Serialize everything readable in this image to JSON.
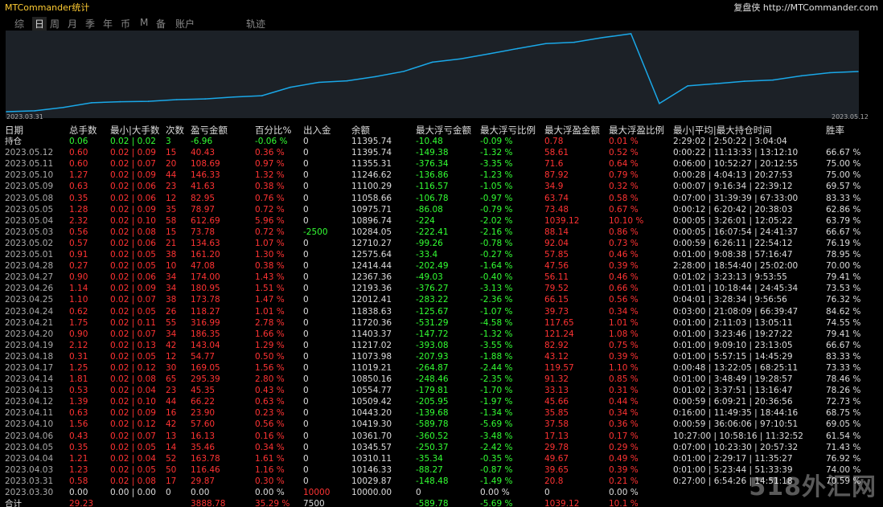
{
  "app": {
    "title": "MTCommander统计",
    "brand": "复盘侠 http://MTCommander.com"
  },
  "tabs": [
    "综",
    "日",
    "周",
    "月",
    "季",
    "年",
    "币",
    "M",
    "备",
    "账户",
    "轨迹"
  ],
  "active_tab": "日",
  "chart": {
    "start_label": "2023.03.31",
    "end_label": "2023.05.12",
    "line_color": "#1aa8e8",
    "balance": [
      10000.0,
      10029.87,
      10146.33,
      10310.11,
      10345.57,
      10361.7,
      10419.3,
      10443.2,
      10509.42,
      10554.77,
      10850.16,
      11019.21,
      11073.98,
      11217.02,
      11403.37,
      11720.36,
      11838.63,
      12012.41,
      12193.36,
      12367.36,
      12414.44,
      12575.64,
      12710.27,
      10284.05,
      10896.74,
      10975.71,
      11058.66,
      11100.29,
      11246.62,
      11355.31,
      11395.74
    ]
  },
  "columns": [
    "日期",
    "总手数",
    "最小|大手数",
    "次数",
    "盈亏金额",
    "百分比%",
    "出入金",
    "余额",
    "最大浮亏金额",
    "最大浮亏比例",
    "最大浮盈金额",
    "最大浮盈比例",
    "最小|平均|最大持仓时间",
    "胜率"
  ],
  "holding": [
    "持仓",
    "0.06",
    "0.02 | 0.02",
    "3",
    "-6.96",
    "-0.06 %",
    "0",
    "11395.74",
    "-10.48",
    "-0.09 %",
    "0.78",
    "0.01 %",
    "2:29:02 | 2:50:22 | 3:04:04",
    ""
  ],
  "rows": [
    [
      "2023.05.12",
      "0.60",
      "0.02 | 0.09",
      "15",
      "40.43",
      "0.36 %",
      "0",
      "11395.74",
      "-149.38",
      "-1.32 %",
      "58.61",
      "0.52 %",
      "0:00:22 | 11:13:33 | 13:12:10",
      "66.67 %"
    ],
    [
      "2023.05.11",
      "0.60",
      "0.02 | 0.07",
      "20",
      "108.69",
      "0.97 %",
      "0",
      "11355.31",
      "-376.34",
      "-3.35 %",
      "71.6",
      "0.64 %",
      "0:06:00 | 10:52:27 | 20:12:55",
      "75.00 %"
    ],
    [
      "2023.05.10",
      "1.27",
      "0.02 | 0.09",
      "44",
      "146.33",
      "1.32 %",
      "0",
      "11246.62",
      "-136.86",
      "-1.23 %",
      "87.92",
      "0.79 %",
      "0:00:28 | 4:04:13 | 20:27:53",
      "75.00 %"
    ],
    [
      "2023.05.09",
      "0.63",
      "0.02 | 0.06",
      "23",
      "41.63",
      "0.38 %",
      "0",
      "11100.29",
      "-116.57",
      "-1.05 %",
      "34.9",
      "0.32 %",
      "0:00:07 | 9:16:34 | 22:39:12",
      "69.57 %"
    ],
    [
      "2023.05.08",
      "0.35",
      "0.02 | 0.06",
      "12",
      "82.95",
      "0.76 %",
      "0",
      "11058.66",
      "-106.78",
      "-0.97 %",
      "63.74",
      "0.58 %",
      "0:07:00 | 31:39:39 | 67:33:00",
      "83.33 %"
    ],
    [
      "2023.05.05",
      "1.28",
      "0.02 | 0.09",
      "35",
      "78.97",
      "0.72 %",
      "0",
      "10975.71",
      "-86.08",
      "-0.79 %",
      "73.48",
      "0.67 %",
      "0:00:12 | 6:20:42 | 20:38:03",
      "62.86 %"
    ],
    [
      "2023.05.04",
      "2.32",
      "0.02 | 0.10",
      "58",
      "612.69",
      "5.96 %",
      "0",
      "10896.74",
      "-224",
      "-2.02 %",
      "1039.12",
      "10.10 %",
      "0:00:05 | 3:26:01 | 12:05:22",
      "63.79 %"
    ],
    [
      "2023.05.03",
      "0.56",
      "0.02 | 0.08",
      "15",
      "73.78",
      "0.72 %",
      "-2500",
      "10284.05",
      "-222.41",
      "-2.16 %",
      "88.14",
      "0.86 %",
      "0:00:05 | 16:07:54 | 24:41:37",
      "66.67 %"
    ],
    [
      "2023.05.02",
      "0.57",
      "0.02 | 0.06",
      "21",
      "134.63",
      "1.07 %",
      "0",
      "12710.27",
      "-99.26",
      "-0.78 %",
      "92.04",
      "0.73 %",
      "0:00:59 | 6:26:11 | 22:54:12",
      "76.19 %"
    ],
    [
      "2023.05.01",
      "0.91",
      "0.02 | 0.05",
      "38",
      "161.20",
      "1.30 %",
      "0",
      "12575.64",
      "-33.4",
      "-0.27 %",
      "57.85",
      "0.46 %",
      "0:01:00 | 9:08:38 | 57:16:47",
      "78.95 %"
    ],
    [
      "2023.04.28",
      "0.27",
      "0.02 | 0.05",
      "10",
      "47.08",
      "0.38 %",
      "0",
      "12414.44",
      "-202.49",
      "-1.64 %",
      "47.56",
      "0.39 %",
      "2:28:00 | 18:54:40 | 25:02:00",
      "70.00 %"
    ],
    [
      "2023.04.27",
      "0.90",
      "0.02 | 0.06",
      "34",
      "174.00",
      "1.43 %",
      "0",
      "12367.36",
      "-49.03",
      "-0.40 %",
      "56.11",
      "0.46 %",
      "0:01:02 | 3:23:13 | 9:53:55",
      "79.41 %"
    ],
    [
      "2023.04.26",
      "1.14",
      "0.02 | 0.09",
      "34",
      "180.95",
      "1.51 %",
      "0",
      "12193.36",
      "-376.27",
      "-3.13 %",
      "79.52",
      "0.66 %",
      "0:01:01 | 10:18:44 | 24:45:34",
      "73.53 %"
    ],
    [
      "2023.04.25",
      "1.10",
      "0.02 | 0.07",
      "38",
      "173.78",
      "1.47 %",
      "0",
      "12012.41",
      "-283.22",
      "-2.36 %",
      "66.15",
      "0.56 %",
      "0:04:01 | 3:28:34 | 9:56:56",
      "76.32 %"
    ],
    [
      "2023.04.24",
      "0.62",
      "0.02 | 0.05",
      "26",
      "118.27",
      "1.01 %",
      "0",
      "11838.63",
      "-125.67",
      "-1.07 %",
      "39.73",
      "0.34 %",
      "0:03:00 | 21:08:09 | 66:39:47",
      "84.62 %"
    ],
    [
      "2023.04.21",
      "1.75",
      "0.02 | 0.11",
      "55",
      "316.99",
      "2.78 %",
      "0",
      "11720.36",
      "-531.29",
      "-4.58 %",
      "117.65",
      "1.01 %",
      "0:01:00 | 2:11:03 | 13:05:11",
      "74.55 %"
    ],
    [
      "2023.04.20",
      "0.90",
      "0.02 | 0.07",
      "34",
      "186.35",
      "1.66 %",
      "0",
      "11403.37",
      "-147.72",
      "-1.32 %",
      "121.24",
      "1.08 %",
      "0:01:00 | 3:23:46 | 19:27:22",
      "79.41 %"
    ],
    [
      "2023.04.19",
      "2.12",
      "0.02 | 0.13",
      "42",
      "143.04",
      "1.29 %",
      "0",
      "11217.02",
      "-393.08",
      "-3.55 %",
      "82.92",
      "0.75 %",
      "0:01:00 | 9:09:10 | 23:13:05",
      "66.67 %"
    ],
    [
      "2023.04.18",
      "0.31",
      "0.02 | 0.05",
      "12",
      "54.77",
      "0.50 %",
      "0",
      "11073.98",
      "-207.93",
      "-1.88 %",
      "43.12",
      "0.39 %",
      "0:01:00 | 5:57:15 | 14:45:29",
      "83.33 %"
    ],
    [
      "2023.04.17",
      "1.25",
      "0.02 | 0.12",
      "30",
      "169.05",
      "1.56 %",
      "0",
      "11019.21",
      "-264.87",
      "-2.44 %",
      "119.57",
      "1.10 %",
      "0:00:48 | 13:22:05 | 68:25:11",
      "73.33 %"
    ],
    [
      "2023.04.14",
      "1.81",
      "0.02 | 0.08",
      "65",
      "295.39",
      "2.80 %",
      "0",
      "10850.16",
      "-248.46",
      "-2.35 %",
      "91.32",
      "0.85 %",
      "0:01:00 | 3:48:49 | 19:28:57",
      "78.46 %"
    ],
    [
      "2023.04.13",
      "0.53",
      "0.02 | 0.04",
      "23",
      "45.35",
      "0.43 %",
      "0",
      "10554.77",
      "-179.81",
      "-1.70 %",
      "33.13",
      "0.31 %",
      "0:01:02 | 3:37:51 | 13:16:47",
      "78.26 %"
    ],
    [
      "2023.04.12",
      "1.39",
      "0.02 | 0.10",
      "44",
      "66.22",
      "0.63 %",
      "0",
      "10509.42",
      "-205.95",
      "-1.97 %",
      "45.66",
      "0.44 %",
      "0:00:59 | 6:09:21 | 20:36:56",
      "72.73 %"
    ],
    [
      "2023.04.11",
      "0.63",
      "0.02 | 0.09",
      "16",
      "23.90",
      "0.23 %",
      "0",
      "10443.20",
      "-139.68",
      "-1.34 %",
      "35.85",
      "0.34 %",
      "0:16:00 | 11:49:35 | 18:44:16",
      "68.75 %"
    ],
    [
      "2023.04.10",
      "1.56",
      "0.02 | 0.12",
      "42",
      "57.60",
      "0.56 %",
      "0",
      "10419.30",
      "-589.78",
      "-5.69 %",
      "37.58",
      "0.36 %",
      "0:00:59 | 36:06:06 | 97:10:51",
      "69.05 %"
    ],
    [
      "2023.04.06",
      "0.43",
      "0.02 | 0.07",
      "13",
      "16.13",
      "0.16 %",
      "0",
      "10361.70",
      "-360.52",
      "-3.48 %",
      "17.13",
      "0.17 %",
      "10:27:00 | 10:58:16 | 11:32:52",
      "61.54 %"
    ],
    [
      "2023.04.05",
      "0.35",
      "0.02 | 0.05",
      "14",
      "35.46",
      "0.34 %",
      "0",
      "10345.57",
      "-250.37",
      "-2.42 %",
      "29.78",
      "0.29 %",
      "0:07:00 | 10:23:30 | 20:57:32",
      "71.43 %"
    ],
    [
      "2023.04.04",
      "1.21",
      "0.02 | 0.04",
      "52",
      "163.78",
      "1.61 %",
      "0",
      "10310.11",
      "-35.34",
      "-0.35 %",
      "49.67",
      "0.49 %",
      "0:01:00 | 2:29:17 | 11:35:27",
      "76.92 %"
    ],
    [
      "2023.04.03",
      "1.23",
      "0.02 | 0.05",
      "50",
      "116.46",
      "1.16 %",
      "0",
      "10146.33",
      "-88.27",
      "-0.87 %",
      "39.65",
      "0.39 %",
      "0:01:00 | 5:23:44 | 51:33:39",
      "74.00 %"
    ],
    [
      "2023.03.31",
      "0.58",
      "0.02 | 0.08",
      "17",
      "29.87",
      "0.30 %",
      "0",
      "10029.87",
      "-148.48",
      "-1.49 %",
      "20.8",
      "0.21 %",
      "0:27:00 | 6:54:26 | 14:51:18",
      "70.59 %"
    ],
    [
      "2023.03.30",
      "0.00",
      "0.00 | 0.00",
      "0",
      "0.00",
      "0.00 %",
      "10000",
      "10000.00",
      "0",
      "0.00 %",
      "0",
      "0.00 %",
      "",
      ""
    ]
  ],
  "total": [
    "合计",
    "29.23",
    "",
    "",
    "3888.78",
    "35.29 %",
    "7500",
    "",
    "-589.78",
    "-5.69 %",
    "1039.12",
    "10.1 %",
    "",
    ""
  ],
  "watermark": "518外汇网"
}
